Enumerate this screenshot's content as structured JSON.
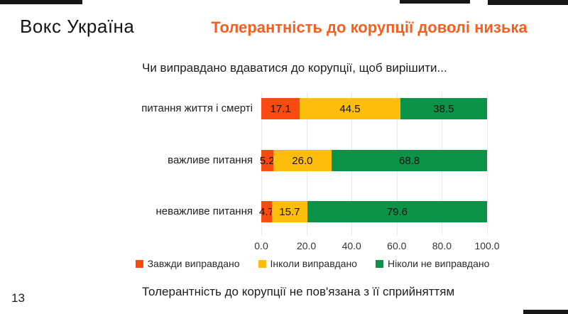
{
  "header": {
    "logo_text": "Вокс Україна",
    "title": "Толерантність до корупції доволі низька",
    "title_color": "#F95E1E"
  },
  "chart_data": {
    "type": "bar",
    "orientation": "horizontal",
    "stacked": true,
    "title": "Чи виправдано вдаватися до корупції, щоб вирішити...",
    "categories": [
      "питання життя і смерті",
      "важливе питання",
      "неважливе питання"
    ],
    "series": [
      {
        "name": "Завжди виправдано",
        "color": "#FA4A10",
        "values": [
          17.1,
          5.2,
          4.7
        ]
      },
      {
        "name": "Інколи виправдано",
        "color": "#FDBD0D",
        "values": [
          44.5,
          26.0,
          15.7
        ]
      },
      {
        "name": "Ніколи не виправдано",
        "color": "#0B9348",
        "values": [
          38.5,
          68.8,
          79.6
        ]
      }
    ],
    "x_ticks": [
      "0.0",
      "20.0",
      "40.0",
      "60.0",
      "80.0",
      "100.0"
    ],
    "xlim": [
      0,
      100
    ],
    "grid": true,
    "grid_color": "#e9e9e9",
    "legend_position": "bottom",
    "value_label_color": "#111111"
  },
  "footer": {
    "note": "Толерантність до корупції не пов'язана з її сприйняттям",
    "page_number": "13"
  }
}
